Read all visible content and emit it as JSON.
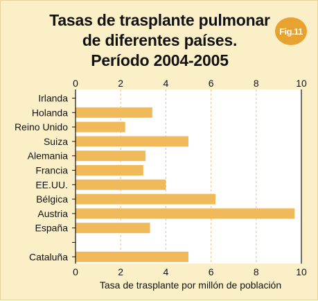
{
  "figure": {
    "title_lines": [
      "Tasas de trasplante pulmonar",
      "de diferentes países.",
      "Período 2004-2005"
    ],
    "badge": "Fig.11"
  },
  "colors": {
    "background": "#fbefc8",
    "plot_area": "#ffffff",
    "bar": "#f0b95a",
    "grid": "#f0c070",
    "badge": "#e8a230"
  },
  "chart_data": {
    "type": "bar",
    "orientation": "horizontal",
    "categories": [
      "Irlanda",
      "Holanda",
      "Reino Unido",
      "Suiza",
      "Alemania",
      "Francia",
      "EE.UU.",
      "Bélgica",
      "Austria",
      "España",
      "",
      "Cataluña"
    ],
    "values": [
      0,
      3.4,
      2.2,
      5.0,
      3.1,
      3.0,
      4.0,
      6.2,
      9.7,
      3.3,
      null,
      5.0
    ],
    "xlabel": "Tasa de trasplante por millón de población",
    "xlim": [
      0,
      10
    ],
    "xticks": [
      "0",
      "2",
      "4",
      "6",
      "8",
      "10"
    ],
    "tick_labels_top_and_bottom": true,
    "grid": "vertical dashed"
  }
}
